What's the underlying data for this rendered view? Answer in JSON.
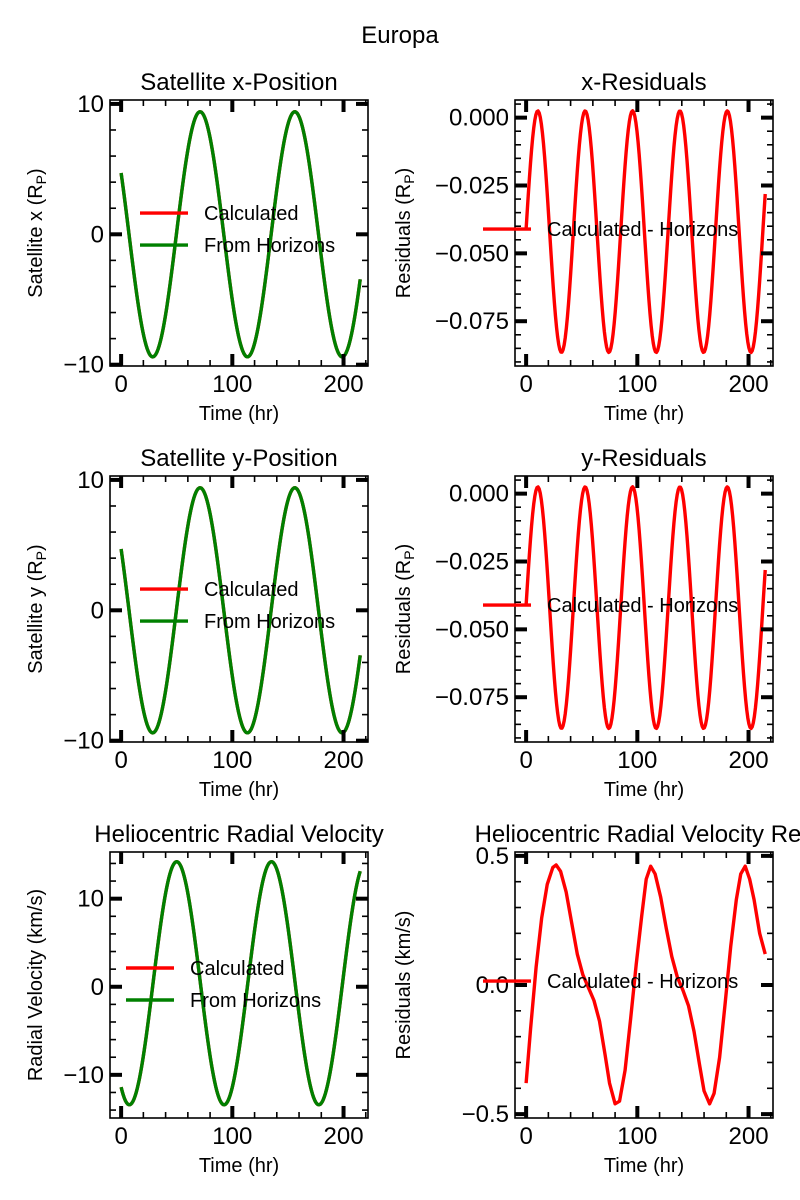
{
  "figure": {
    "suptitle": "Europa",
    "colors": {
      "calculated": "#ff0000",
      "horizons": "#008000",
      "residual": "#ff0000",
      "axes": "#000000"
    }
  },
  "chart_data": [
    {
      "type": "line",
      "title": "Satellite x-Position",
      "xlabel": "Time (hr)",
      "ylabel": "Satellite x (R",
      "ylabel_sub": "P",
      "ylabel_end": ")",
      "xlim": [
        -10,
        222
      ],
      "ylim": [
        -10.1,
        10.3
      ],
      "xticks": [
        0,
        100,
        200
      ],
      "xtick_labels": [
        "0",
        "100",
        "200"
      ],
      "yticks": [
        -10,
        0,
        10
      ],
      "ytick_labels": [
        "−10",
        "0",
        "10"
      ],
      "xminor_step": 20,
      "yminor_step": 2,
      "legend": [
        "Calculated",
        "From Horizons"
      ],
      "legend_loc": "center-left",
      "series": [
        {
          "name": "Calculated",
          "color": "#ff0000",
          "model": {
            "kind": "sine",
            "x_start": 0,
            "x_end": 215,
            "offset": 0,
            "amp": 9.4,
            "period": 85.2,
            "peak_at": 71
          }
        },
        {
          "name": "From Horizons",
          "color": "#008000",
          "model": {
            "kind": "sine",
            "x_start": 0,
            "x_end": 215,
            "offset": 0,
            "amp": 9.4,
            "period": 85.2,
            "peak_at": 71
          }
        }
      ]
    },
    {
      "type": "line",
      "title": "x-Residuals",
      "xlabel": "Time (hr)",
      "ylabel": "Residuals (R",
      "ylabel_sub": "P",
      "ylabel_end": ")",
      "xlim": [
        -10,
        222
      ],
      "ylim": [
        -0.0915,
        0.0065
      ],
      "xticks": [
        0,
        100,
        200
      ],
      "xtick_labels": [
        "0",
        "100",
        "200"
      ],
      "yticks": [
        0,
        -0.025,
        -0.05,
        -0.075
      ],
      "ytick_labels": [
        "0.000",
        "−0.025",
        "−0.050",
        "−0.075"
      ],
      "xminor_step": 20,
      "yminor_step": 0.005,
      "legend": [
        "Calculated - Horizons"
      ],
      "legend_loc": "center-left",
      "series": [
        {
          "name": "Calculated - Horizons",
          "color": "#ff0000",
          "model": {
            "kind": "sine",
            "x_start": 0,
            "x_end": 215,
            "offset": -0.042,
            "amp": 0.0445,
            "period": 42.6,
            "peak_at": 10.5
          }
        }
      ]
    },
    {
      "type": "line",
      "title": "Satellite y-Position",
      "xlabel": "Time (hr)",
      "ylabel": "Satellite y (R",
      "ylabel_sub": "P",
      "ylabel_end": ")",
      "xlim": [
        -10,
        222
      ],
      "ylim": [
        -10.1,
        10.3
      ],
      "xticks": [
        0,
        100,
        200
      ],
      "xtick_labels": [
        "0",
        "100",
        "200"
      ],
      "yticks": [
        -10,
        0,
        10
      ],
      "ytick_labels": [
        "−10",
        "0",
        "10"
      ],
      "xminor_step": 20,
      "yminor_step": 2,
      "legend": [
        "Calculated",
        "From Horizons"
      ],
      "legend_loc": "center-left",
      "series": [
        {
          "name": "Calculated",
          "color": "#ff0000",
          "model": {
            "kind": "sine",
            "x_start": 0,
            "x_end": 215,
            "offset": 0,
            "amp": 9.4,
            "period": 85.2,
            "peak_at": 71
          }
        },
        {
          "name": "From Horizons",
          "color": "#008000",
          "model": {
            "kind": "sine",
            "x_start": 0,
            "x_end": 215,
            "offset": 0,
            "amp": 9.4,
            "period": 85.2,
            "peak_at": 71
          }
        }
      ]
    },
    {
      "type": "line",
      "title": "y-Residuals",
      "xlabel": "Time (hr)",
      "ylabel": "Residuals (R",
      "ylabel_sub": "P",
      "ylabel_end": ")",
      "xlim": [
        -10,
        222
      ],
      "ylim": [
        -0.0915,
        0.0065
      ],
      "xticks": [
        0,
        100,
        200
      ],
      "xtick_labels": [
        "0",
        "100",
        "200"
      ],
      "yticks": [
        0,
        -0.025,
        -0.05,
        -0.075
      ],
      "ytick_labels": [
        "0.000",
        "−0.025",
        "−0.050",
        "−0.075"
      ],
      "xminor_step": 20,
      "yminor_step": 0.005,
      "legend": [
        "Calculated - Horizons"
      ],
      "legend_loc": "center-left",
      "series": [
        {
          "name": "Calculated - Horizons",
          "color": "#ff0000",
          "model": {
            "kind": "sine",
            "x_start": 0,
            "x_end": 215,
            "offset": -0.042,
            "amp": 0.0445,
            "period": 42.6,
            "peak_at": 10.5
          }
        }
      ]
    },
    {
      "type": "line",
      "title": "Heliocentric Radial Velocity",
      "xlabel": "Time (hr)",
      "ylabel": "Radial Velocity (km/s)",
      "xlim": [
        -10,
        222
      ],
      "ylim": [
        -14.9,
        15.3
      ],
      "xticks": [
        0,
        100,
        200
      ],
      "xtick_labels": [
        "0",
        "100",
        "200"
      ],
      "yticks": [
        -10,
        0,
        10
      ],
      "ytick_labels": [
        "−10",
        "0",
        "10"
      ],
      "xminor_step": 20,
      "yminor_step": 2,
      "legend": [
        "Calculated",
        "From Horizons"
      ],
      "legend_loc": "center-left",
      "series": [
        {
          "name": "Calculated",
          "color": "#ff0000",
          "model": {
            "kind": "sine",
            "x_start": 0,
            "x_end": 215,
            "offset": 0.4,
            "amp": 13.8,
            "period": 85.2,
            "peak_at": 50
          }
        },
        {
          "name": "From Horizons",
          "color": "#008000",
          "model": {
            "kind": "sine",
            "x_start": 0,
            "x_end": 215,
            "offset": 0.4,
            "amp": 13.8,
            "period": 85.2,
            "peak_at": 50
          }
        }
      ]
    },
    {
      "type": "line",
      "title": "Heliocentric Radial Velocity Res",
      "xlabel": "Time (hr)",
      "ylabel": "Residuals (km/s)",
      "xlim": [
        -10,
        222
      ],
      "ylim": [
        -0.515,
        0.515
      ],
      "xticks": [
        0,
        100,
        200
      ],
      "xtick_labels": [
        "0",
        "100",
        "200"
      ],
      "yticks": [
        -0.5,
        0,
        0.5
      ],
      "ytick_labels": [
        "−0.5",
        "0.0",
        "0.5"
      ],
      "xminor_step": 20,
      "yminor_step": 0.1,
      "legend": [
        "Calculated - Horizons"
      ],
      "legend_loc": "center-left",
      "series": [
        {
          "name": "Calculated - Horizons",
          "color": "#ff0000",
          "points": [
            [
              0,
              -0.38
            ],
            [
              4,
              -0.17
            ],
            [
              9,
              0.07
            ],
            [
              14,
              0.26
            ],
            [
              19,
              0.39
            ],
            [
              24,
              0.455
            ],
            [
              27,
              0.465
            ],
            [
              31,
              0.44
            ],
            [
              36,
              0.36
            ],
            [
              41,
              0.24
            ],
            [
              46,
              0.12
            ],
            [
              51,
              0.04
            ],
            [
              56,
              -0.01
            ],
            [
              61,
              -0.06
            ],
            [
              66,
              -0.14
            ],
            [
              71,
              -0.27
            ],
            [
              75,
              -0.38
            ],
            [
              80,
              -0.46
            ],
            [
              84,
              -0.45
            ],
            [
              89,
              -0.33
            ],
            [
              94,
              -0.13
            ],
            [
              99,
              0.08
            ],
            [
              104,
              0.27
            ],
            [
              108,
              0.41
            ],
            [
              112,
              0.46
            ],
            [
              116,
              0.43
            ],
            [
              121,
              0.34
            ],
            [
              126,
              0.22
            ],
            [
              131,
              0.11
            ],
            [
              136,
              0.03
            ],
            [
              141,
              -0.02
            ],
            [
              146,
              -0.08
            ],
            [
              151,
              -0.18
            ],
            [
              156,
              -0.31
            ],
            [
              160,
              -0.41
            ],
            [
              165,
              -0.46
            ],
            [
              169,
              -0.42
            ],
            [
              174,
              -0.28
            ],
            [
              179,
              -0.07
            ],
            [
              184,
              0.15
            ],
            [
              189,
              0.33
            ],
            [
              193,
              0.43
            ],
            [
              197,
              0.46
            ],
            [
              201,
              0.41
            ],
            [
              205,
              0.33
            ],
            [
              210,
              0.2
            ],
            [
              215,
              0.12
            ]
          ]
        }
      ]
    }
  ]
}
